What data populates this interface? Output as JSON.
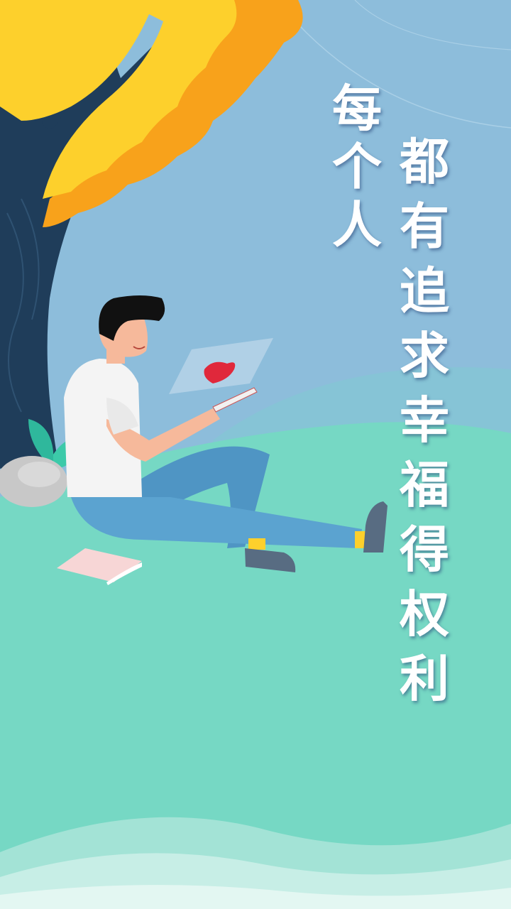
{
  "slogan": {
    "line1": [
      "每",
      "个",
      "人"
    ],
    "line2": [
      "都",
      "有",
      "追",
      "求",
      "幸",
      "福",
      "得",
      "权",
      "利"
    ]
  },
  "illustration": {
    "subject": "man-sitting-under-tree-with-tablet",
    "icon": "heart-icon"
  },
  "colors": {
    "sky": "#8dbddb",
    "grass": "#76d8c4",
    "tree_trunk": "#1f3d5a",
    "foliage_yellow": "#fdd02c",
    "foliage_orange": "#f8a21b",
    "heart": "#e0283b",
    "text": "#ffffff"
  }
}
